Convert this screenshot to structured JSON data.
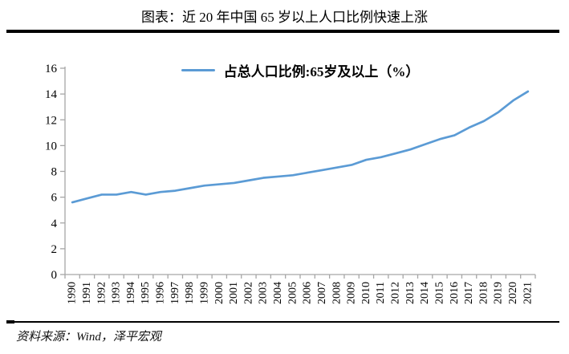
{
  "page": {
    "title": "图表：近 20 年中国 65 岁以上人口比例快速上涨",
    "source": "资料来源：Wind，泽平宏观"
  },
  "legend": {
    "label": "占总人口比例:65岁及以上（%）"
  },
  "colors": {
    "line": "#5B9BD5",
    "axis": "#A6A6A6",
    "text": "#000000",
    "rule": "#000000"
  },
  "chart_data": {
    "type": "line",
    "title": "图表：近 20 年中国 65 岁以上人口比例快速上涨",
    "categories": [
      1990,
      1991,
      1992,
      1993,
      1994,
      1995,
      1996,
      1997,
      1998,
      1999,
      2000,
      2001,
      2002,
      2003,
      2004,
      2005,
      2006,
      2007,
      2008,
      2009,
      2010,
      2011,
      2012,
      2013,
      2014,
      2015,
      2016,
      2017,
      2018,
      2019,
      2020,
      2021
    ],
    "series": [
      {
        "name": "占总人口比例:65岁及以上（%）",
        "values": [
          5.6,
          5.9,
          6.2,
          6.2,
          6.4,
          6.2,
          6.4,
          6.5,
          6.7,
          6.9,
          7.0,
          7.1,
          7.3,
          7.5,
          7.6,
          7.7,
          7.9,
          8.1,
          8.3,
          8.5,
          8.9,
          9.1,
          9.4,
          9.7,
          10.1,
          10.5,
          10.8,
          11.4,
          11.9,
          12.6,
          13.5,
          14.2
        ]
      }
    ],
    "xlabel": "",
    "ylabel": "",
    "ylim": [
      0,
      16
    ],
    "y_ticks": [
      0,
      2,
      4,
      6,
      8,
      10,
      12,
      14,
      16
    ],
    "grid": false,
    "legend_position": "top-center",
    "x_tick_label_rotation": -90
  }
}
